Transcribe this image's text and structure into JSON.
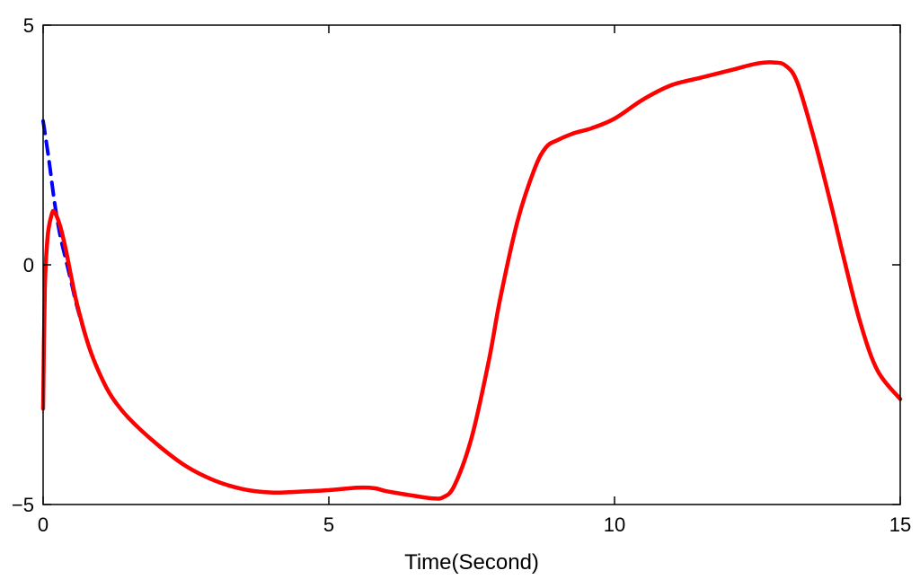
{
  "chart_data": {
    "type": "line",
    "title": "",
    "xlabel": "Time(Second)",
    "ylabel": "",
    "xlim": [
      0,
      15
    ],
    "ylim": [
      -5,
      5
    ],
    "xticks": [
      0,
      5,
      10,
      15
    ],
    "xtick_labels": [
      "0",
      "5",
      "10",
      "15"
    ],
    "yticks": [
      -5,
      0,
      5
    ],
    "ytick_labels": [
      "−5",
      "0",
      "5"
    ],
    "grid": false,
    "legend": "none",
    "box": true,
    "series": [
      {
        "color": "#0000ff",
        "line_style": "dashed",
        "x": [
          0,
          0.1,
          0.2,
          0.3,
          0.4,
          0.5,
          0.6,
          0.8,
          1.0,
          1.2,
          1.5,
          2.0,
          2.5,
          3.0,
          3.5,
          4.0,
          4.5,
          5.0,
          5.5,
          5.8,
          6.0,
          6.5,
          6.8,
          7.0,
          7.2,
          7.5,
          7.8,
          8.0,
          8.3,
          8.6,
          8.8,
          9.0,
          9.3,
          9.6,
          10.0,
          10.5,
          11.0,
          11.5,
          12.0,
          12.5,
          12.8,
          13.0,
          13.2,
          13.5,
          13.8,
          14.0,
          14.3,
          14.6,
          15.0
        ],
        "y": [
          3.0,
          2.2,
          1.3,
          0.6,
          0.1,
          -0.4,
          -0.9,
          -1.7,
          -2.3,
          -2.75,
          -3.2,
          -3.75,
          -4.2,
          -4.5,
          -4.68,
          -4.75,
          -4.73,
          -4.7,
          -4.65,
          -4.66,
          -4.72,
          -4.82,
          -4.87,
          -4.85,
          -4.6,
          -3.6,
          -2.0,
          -0.7,
          0.9,
          2.0,
          2.45,
          2.6,
          2.75,
          2.85,
          3.05,
          3.45,
          3.75,
          3.9,
          4.05,
          4.2,
          4.22,
          4.15,
          3.8,
          2.6,
          1.2,
          0.2,
          -1.2,
          -2.2,
          -2.8
        ]
      },
      {
        "color": "#ff0000",
        "line_style": "solid",
        "x": [
          0,
          0.03,
          0.08,
          0.15,
          0.2,
          0.3,
          0.4,
          0.5,
          0.6,
          0.8,
          1.0,
          1.2,
          1.5,
          2.0,
          2.5,
          3.0,
          3.5,
          4.0,
          4.5,
          5.0,
          5.5,
          5.8,
          6.0,
          6.5,
          6.8,
          7.0,
          7.2,
          7.5,
          7.8,
          8.0,
          8.3,
          8.6,
          8.8,
          9.0,
          9.3,
          9.6,
          10.0,
          10.5,
          11.0,
          11.5,
          12.0,
          12.5,
          12.8,
          13.0,
          13.2,
          13.5,
          13.8,
          14.0,
          14.3,
          14.6,
          15.0
        ],
        "y": [
          -3.0,
          -0.5,
          0.6,
          1.05,
          1.1,
          0.8,
          0.3,
          -0.3,
          -0.85,
          -1.7,
          -2.3,
          -2.75,
          -3.2,
          -3.75,
          -4.2,
          -4.5,
          -4.68,
          -4.75,
          -4.73,
          -4.7,
          -4.65,
          -4.66,
          -4.72,
          -4.82,
          -4.87,
          -4.85,
          -4.6,
          -3.6,
          -2.0,
          -0.7,
          0.9,
          2.0,
          2.45,
          2.6,
          2.75,
          2.85,
          3.05,
          3.45,
          3.75,
          3.9,
          4.05,
          4.2,
          4.22,
          4.15,
          3.8,
          2.6,
          1.2,
          0.2,
          -1.2,
          -2.2,
          -2.8
        ]
      }
    ]
  }
}
